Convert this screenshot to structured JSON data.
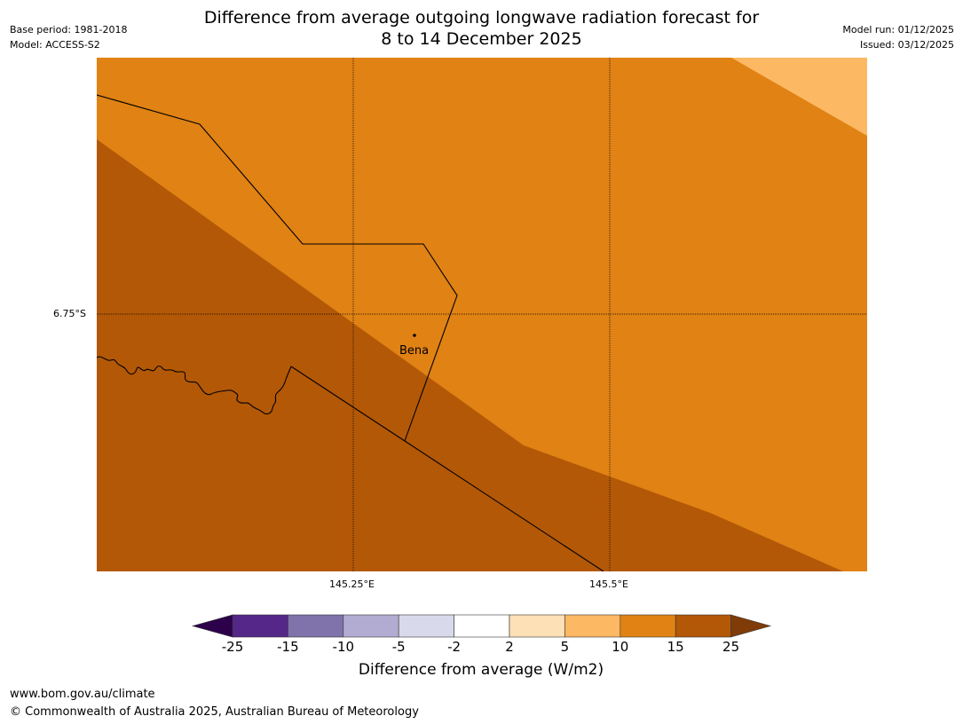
{
  "header": {
    "title_line1": "Difference from average outgoing longwave radiation forecast for",
    "title_line2": "8 to 14 December 2025",
    "base_period": "Base period: 1981-2018",
    "model": "Model: ACCESS-S2",
    "model_run": "Model run: 01/12/2025",
    "issued": "Issued: 03/12/2025"
  },
  "map": {
    "lat_label": "6.75°S",
    "lon_labels": [
      "145.25°E",
      "145.5°E"
    ],
    "place_label": "Bena",
    "colors": {
      "band_15_25": "#b35806",
      "band_10_15": "#e08214",
      "band_5_10": "#fdb863"
    }
  },
  "colorbar": {
    "ticks": [
      "-25",
      "-15",
      "-10",
      "-5",
      "-2",
      "2",
      "5",
      "10",
      "15",
      "25"
    ],
    "colors": [
      "#2d004b",
      "#542788",
      "#8073ac",
      "#b2abd2",
      "#d8daeb",
      "#ffffff",
      "#fee0b6",
      "#fdb863",
      "#e08214",
      "#b35806",
      "#7f3b08"
    ],
    "title": "Difference from average (W/m2)"
  },
  "footer": {
    "url": "www.bom.gov.au/climate",
    "copyright": "© Commonwealth of Australia 2025, Australian Bureau of Meteorology"
  }
}
